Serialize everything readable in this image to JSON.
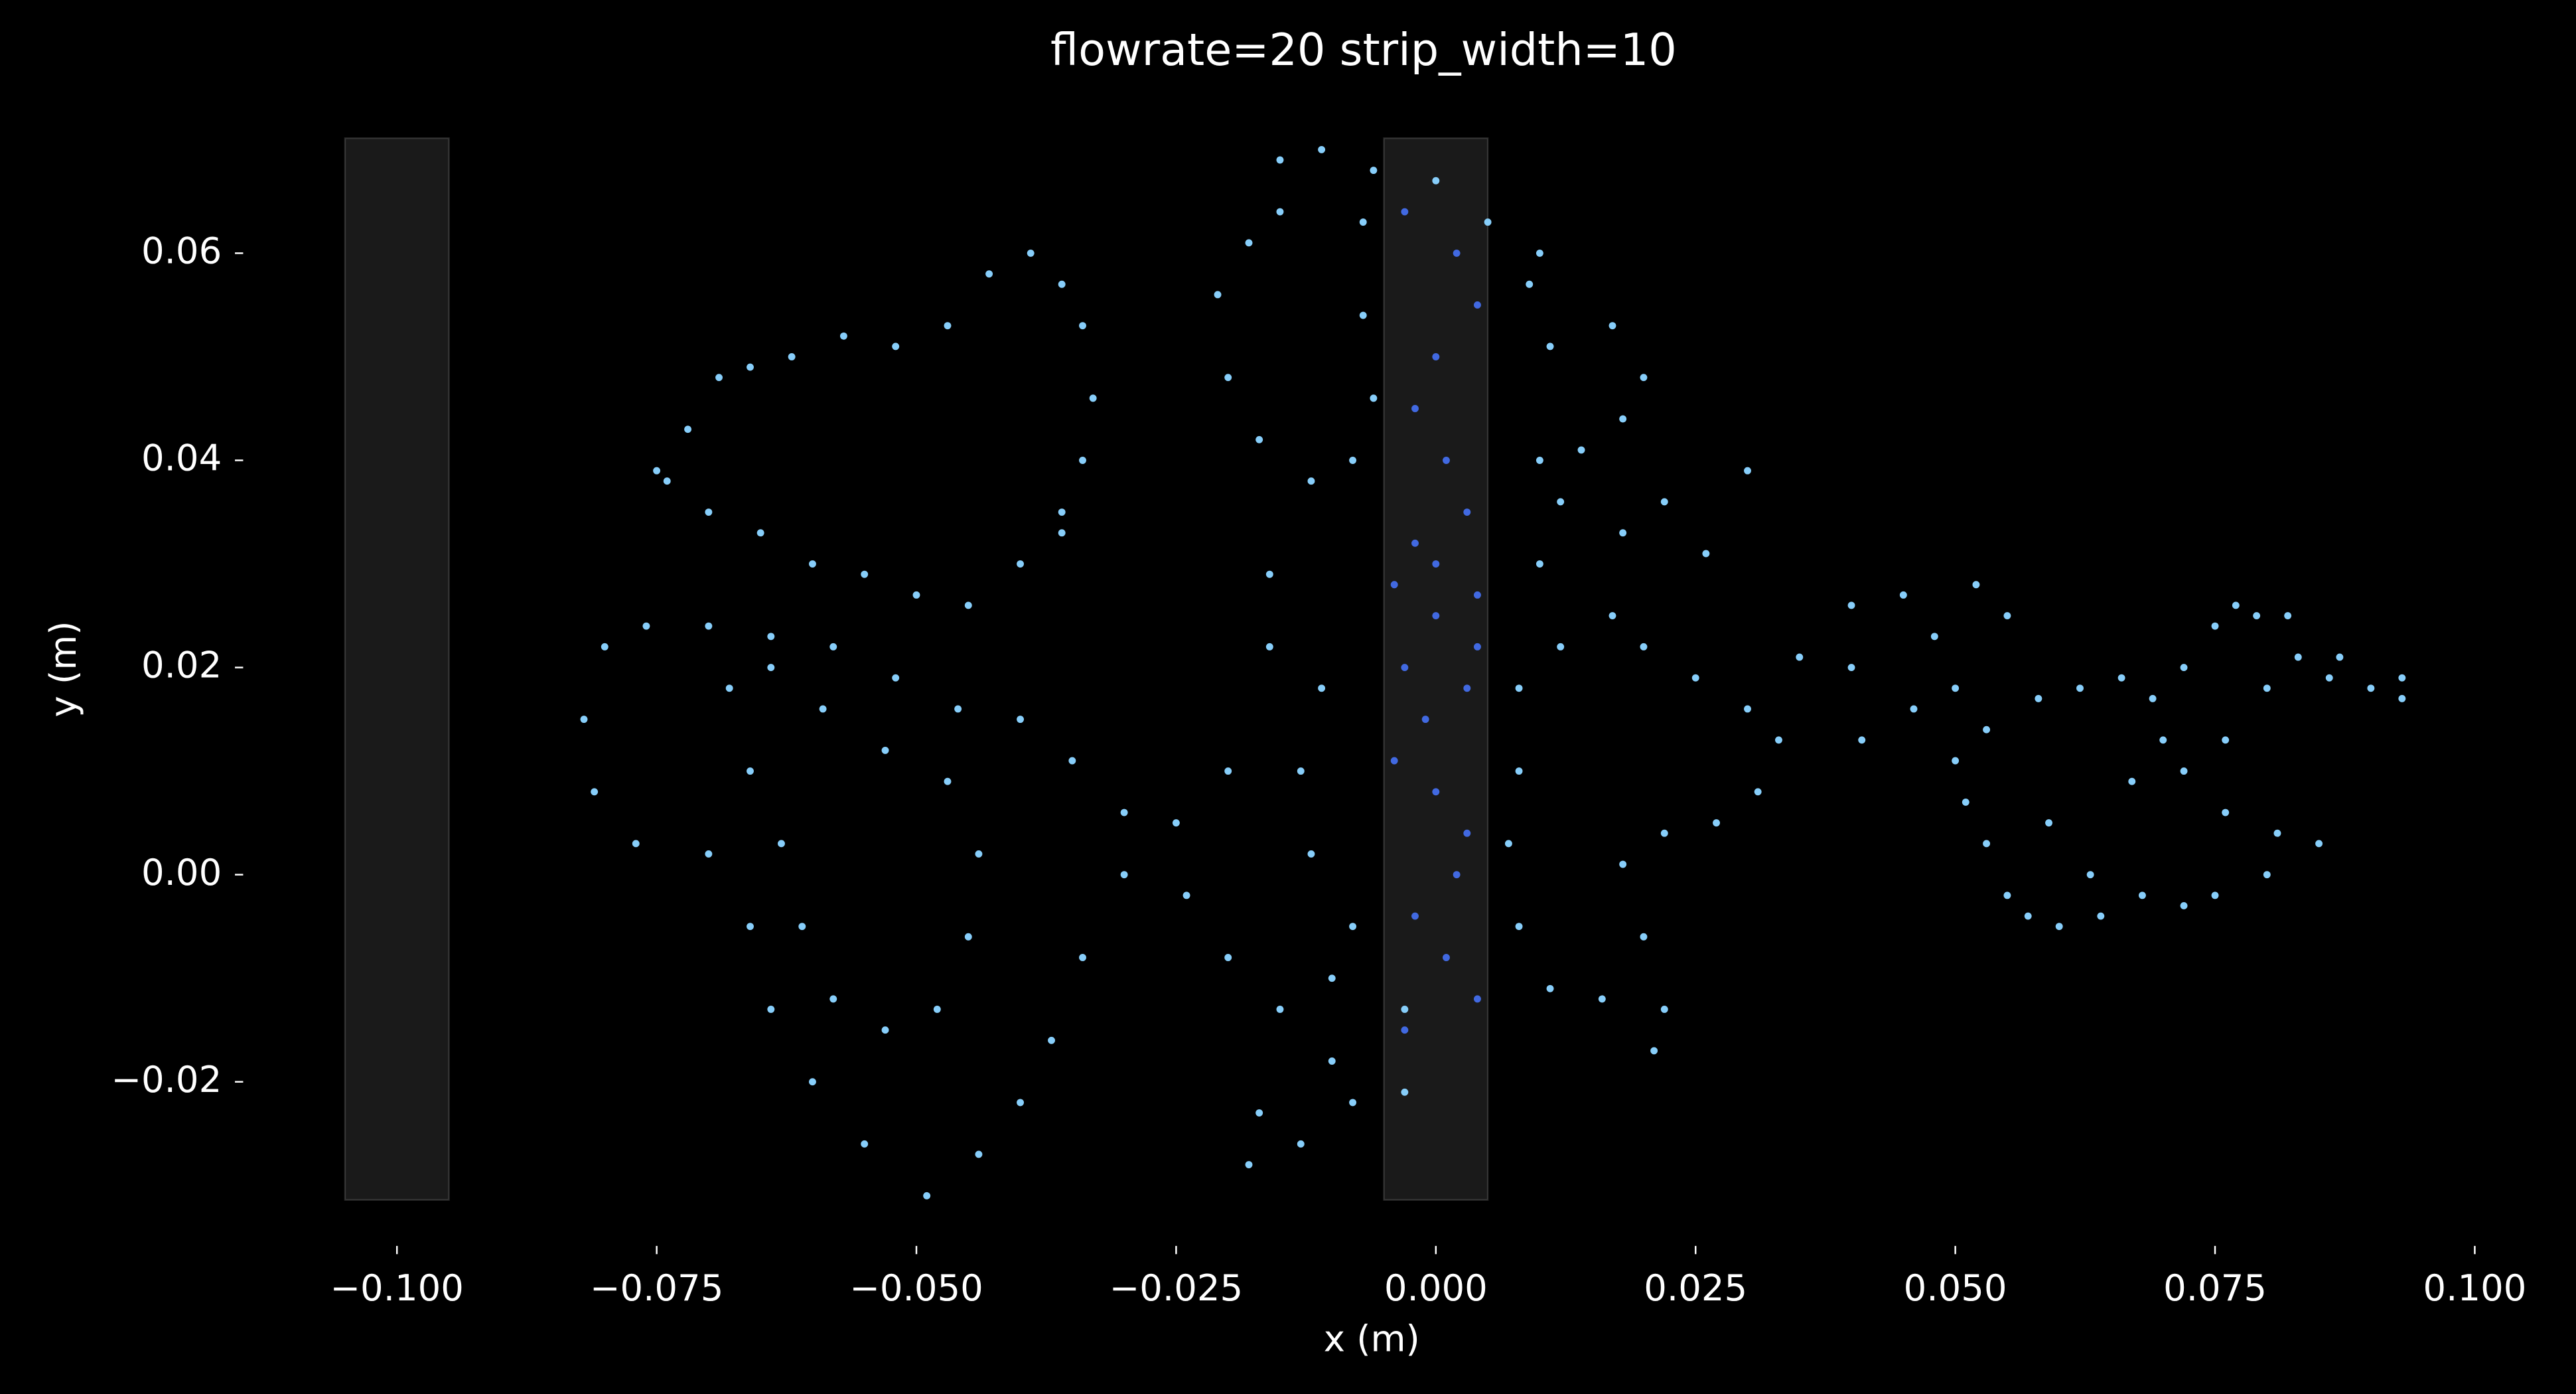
{
  "chart_data": {
    "type": "scatter",
    "title": "flowrate=20 strip_width=10",
    "x_label": "x (m)",
    "y_label": "y (m)",
    "xlim": [
      -0.105,
      0.105
    ],
    "ylim": [
      -0.0314,
      0.0711
    ],
    "xticks": [
      {
        "value": -0.1,
        "label": "−0.100"
      },
      {
        "value": -0.075,
        "label": "−0.075"
      },
      {
        "value": -0.05,
        "label": "−0.050"
      },
      {
        "value": -0.025,
        "label": "−0.025"
      },
      {
        "value": 0,
        "label": "0.000"
      },
      {
        "value": 0.025,
        "label": "0.025"
      },
      {
        "value": 0.05,
        "label": "0.050"
      },
      {
        "value": 0.075,
        "label": "0.075"
      },
      {
        "value": 0.1,
        "label": "0.100"
      }
    ],
    "yticks": [
      {
        "value": -0.02,
        "label": "−0.02"
      },
      {
        "value": 0,
        "label": "0.00"
      },
      {
        "value": 0.02,
        "label": "0.02"
      },
      {
        "value": 0.04,
        "label": "0.04"
      },
      {
        "value": 0.06,
        "label": "0.06"
      }
    ],
    "shaded_regions": [
      [
        -0.105,
        -0.095
      ],
      [
        -0.005,
        0.005
      ]
    ],
    "series": [
      {
        "color": "#87cefa",
        "x": [
          -0.075,
          -0.072,
          -0.069,
          -0.066,
          -0.062,
          -0.057,
          -0.052,
          -0.047,
          -0.043,
          -0.039,
          -0.036,
          -0.034,
          -0.033,
          -0.034,
          -0.036,
          -0.036,
          -0.04,
          -0.045,
          -0.05,
          -0.055,
          -0.06,
          -0.065,
          -0.07,
          -0.074,
          -0.08,
          -0.082,
          -0.081,
          -0.077,
          -0.07,
          -0.066,
          -0.064,
          -0.06,
          -0.055,
          -0.049,
          -0.044,
          -0.04,
          -0.037,
          -0.034,
          -0.03,
          -0.03,
          -0.035,
          -0.04,
          -0.046,
          -0.052,
          -0.058,
          -0.064,
          -0.07,
          -0.076,
          -0.068,
          -0.066,
          -0.063,
          -0.061,
          -0.058,
          -0.053,
          -0.048,
          -0.045,
          -0.044,
          -0.047,
          -0.053,
          -0.059,
          -0.064,
          -0.02,
          -0.025,
          -0.024,
          -0.02,
          -0.015,
          -0.01,
          -0.01,
          -0.017,
          -0.018,
          -0.013,
          -0.008,
          -0.003,
          -0.003,
          -0.008,
          -0.012,
          -0.013,
          -0.011,
          -0.016,
          -0.016,
          -0.012,
          -0.017,
          -0.02,
          -0.021,
          -0.018,
          -0.015,
          -0.015,
          -0.011,
          -0.006,
          -0.007,
          -0.007,
          -0.006,
          -0.008,
          0.008,
          0.012,
          0.017,
          0.02,
          0.025,
          0.03,
          0.033,
          0.031,
          0.027,
          0.022,
          0.018,
          0.02,
          0.022,
          0.021,
          0.016,
          0.011,
          0.008,
          0.007,
          0.008,
          0.01,
          0.012,
          0.014,
          0.018,
          0.02,
          0.017,
          0.011,
          0.009,
          0.01,
          0.005,
          0.0,
          0.01,
          0.022,
          0.03,
          0.026,
          0.018,
          0.035,
          0.04,
          0.045,
          0.048,
          0.052,
          0.055,
          0.05,
          0.046,
          0.041,
          0.04,
          0.053,
          0.058,
          0.062,
          0.066,
          0.069,
          0.072,
          0.075,
          0.077,
          0.079,
          0.082,
          0.083,
          0.086,
          0.087,
          0.09,
          0.093,
          0.093,
          0.08,
          0.076,
          0.072,
          0.076,
          0.081,
          0.085,
          0.08,
          0.075,
          0.072,
          0.068,
          0.064,
          0.06,
          0.057,
          0.055,
          0.053,
          0.051,
          0.05,
          0.059,
          0.063,
          0.067,
          0.07
        ],
        "values": [
          0.039,
          0.043,
          0.048,
          0.049,
          0.05,
          0.052,
          0.051,
          0.053,
          0.058,
          0.06,
          0.057,
          0.053,
          0.046,
          0.04,
          0.035,
          0.033,
          0.03,
          0.026,
          0.027,
          0.029,
          0.03,
          0.033,
          0.035,
          0.038,
          0.022,
          0.015,
          0.008,
          0.003,
          0.002,
          -0.005,
          -0.013,
          -0.02,
          -0.026,
          -0.031,
          -0.027,
          -0.022,
          -0.016,
          -0.008,
          0.0,
          0.006,
          0.011,
          0.015,
          0.016,
          0.019,
          0.022,
          0.023,
          0.024,
          0.024,
          0.018,
          0.01,
          0.003,
          -0.005,
          -0.012,
          -0.015,
          -0.013,
          -0.006,
          0.002,
          0.009,
          0.012,
          0.016,
          0.02,
          0.01,
          0.005,
          -0.002,
          -0.008,
          -0.013,
          -0.01,
          -0.018,
          -0.023,
          -0.028,
          -0.026,
          -0.022,
          -0.021,
          -0.013,
          -0.005,
          0.002,
          0.01,
          0.018,
          0.022,
          0.029,
          0.038,
          0.042,
          0.048,
          0.056,
          0.061,
          0.064,
          0.069,
          0.07,
          0.068,
          0.063,
          0.054,
          0.046,
          0.04,
          0.018,
          0.022,
          0.025,
          0.022,
          0.019,
          0.016,
          0.013,
          0.008,
          0.005,
          0.004,
          0.001,
          -0.006,
          -0.013,
          -0.017,
          -0.012,
          -0.011,
          -0.005,
          0.003,
          0.01,
          0.03,
          0.036,
          0.041,
          0.044,
          0.048,
          0.053,
          0.051,
          0.057,
          0.06,
          0.063,
          0.067,
          0.04,
          0.036,
          0.039,
          0.031,
          0.033,
          0.021,
          0.026,
          0.027,
          0.023,
          0.028,
          0.025,
          0.018,
          0.016,
          0.013,
          0.02,
          0.014,
          0.017,
          0.018,
          0.019,
          0.017,
          0.02,
          0.024,
          0.026,
          0.025,
          0.025,
          0.021,
          0.019,
          0.021,
          0.018,
          0.019,
          0.017,
          0.018,
          0.013,
          0.01,
          0.006,
          0.004,
          0.003,
          0.0,
          -0.002,
          -0.003,
          -0.002,
          -0.004,
          -0.005,
          -0.004,
          -0.002,
          0.003,
          0.007,
          0.011,
          0.005,
          0.0,
          0.009,
          0.013
        ]
      },
      {
        "color": "#4169e1",
        "x": [
          -0.003,
          0.002,
          0.004,
          0.0,
          -0.002,
          0.001,
          0.003,
          -0.002,
          -0.004,
          0.0,
          0.004,
          0.003,
          -0.001,
          -0.004,
          0.0,
          0.003,
          0.002,
          -0.002,
          0.001,
          0.004,
          -0.003,
          0.0,
          0.004,
          -0.003
        ],
        "values": [
          0.064,
          0.06,
          0.055,
          0.05,
          0.045,
          0.04,
          0.035,
          0.032,
          0.028,
          0.025,
          0.022,
          0.018,
          0.015,
          0.011,
          0.008,
          0.004,
          0.0,
          -0.004,
          -0.008,
          -0.012,
          -0.015,
          0.03,
          0.027,
          0.02
        ]
      }
    ]
  }
}
